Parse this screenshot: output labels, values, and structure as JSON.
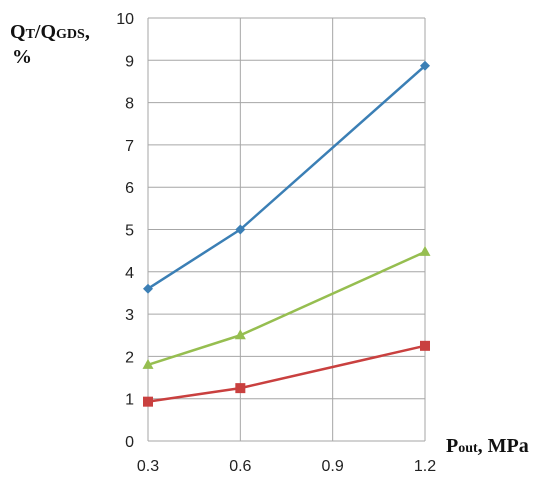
{
  "chart_data": {
    "type": "line",
    "title": "",
    "x": [
      0.3,
      0.6,
      0.9,
      1.2
    ],
    "x_ticks": [
      "0.3",
      "0.6",
      "0.9",
      "1.2"
    ],
    "xlim": [
      0.3,
      1.2
    ],
    "ylim": [
      0,
      10
    ],
    "y_ticks": [
      "0",
      "1",
      "2",
      "3",
      "4",
      "5",
      "6",
      "7",
      "8",
      "9",
      "10"
    ],
    "grid": true,
    "legend": "none",
    "ylabel": {
      "main_1": "Q",
      "sub_1": "T",
      "slash": "/Q",
      "sub_2": "GDS",
      "tail": ",",
      "line2": "%"
    },
    "xlabel": {
      "main": "P",
      "sub": "out",
      "tail": ", MPa"
    },
    "series": [
      {
        "color": "#3B7FB5",
        "marker": "diamond",
        "points": [
          {
            "x": 0.3,
            "y": 3.6
          },
          {
            "x": 0.6,
            "y": 5.0
          },
          {
            "x": 1.2,
            "y": 8.87
          }
        ]
      },
      {
        "color": "#96BE50",
        "marker": "triangle",
        "points": [
          {
            "x": 0.3,
            "y": 1.8
          },
          {
            "x": 0.6,
            "y": 2.5
          },
          {
            "x": 1.2,
            "y": 4.47
          }
        ]
      },
      {
        "color": "#C9403F",
        "marker": "square",
        "points": [
          {
            "x": 0.3,
            "y": 0.93
          },
          {
            "x": 0.6,
            "y": 1.25
          },
          {
            "x": 1.2,
            "y": 2.25
          }
        ]
      }
    ]
  }
}
